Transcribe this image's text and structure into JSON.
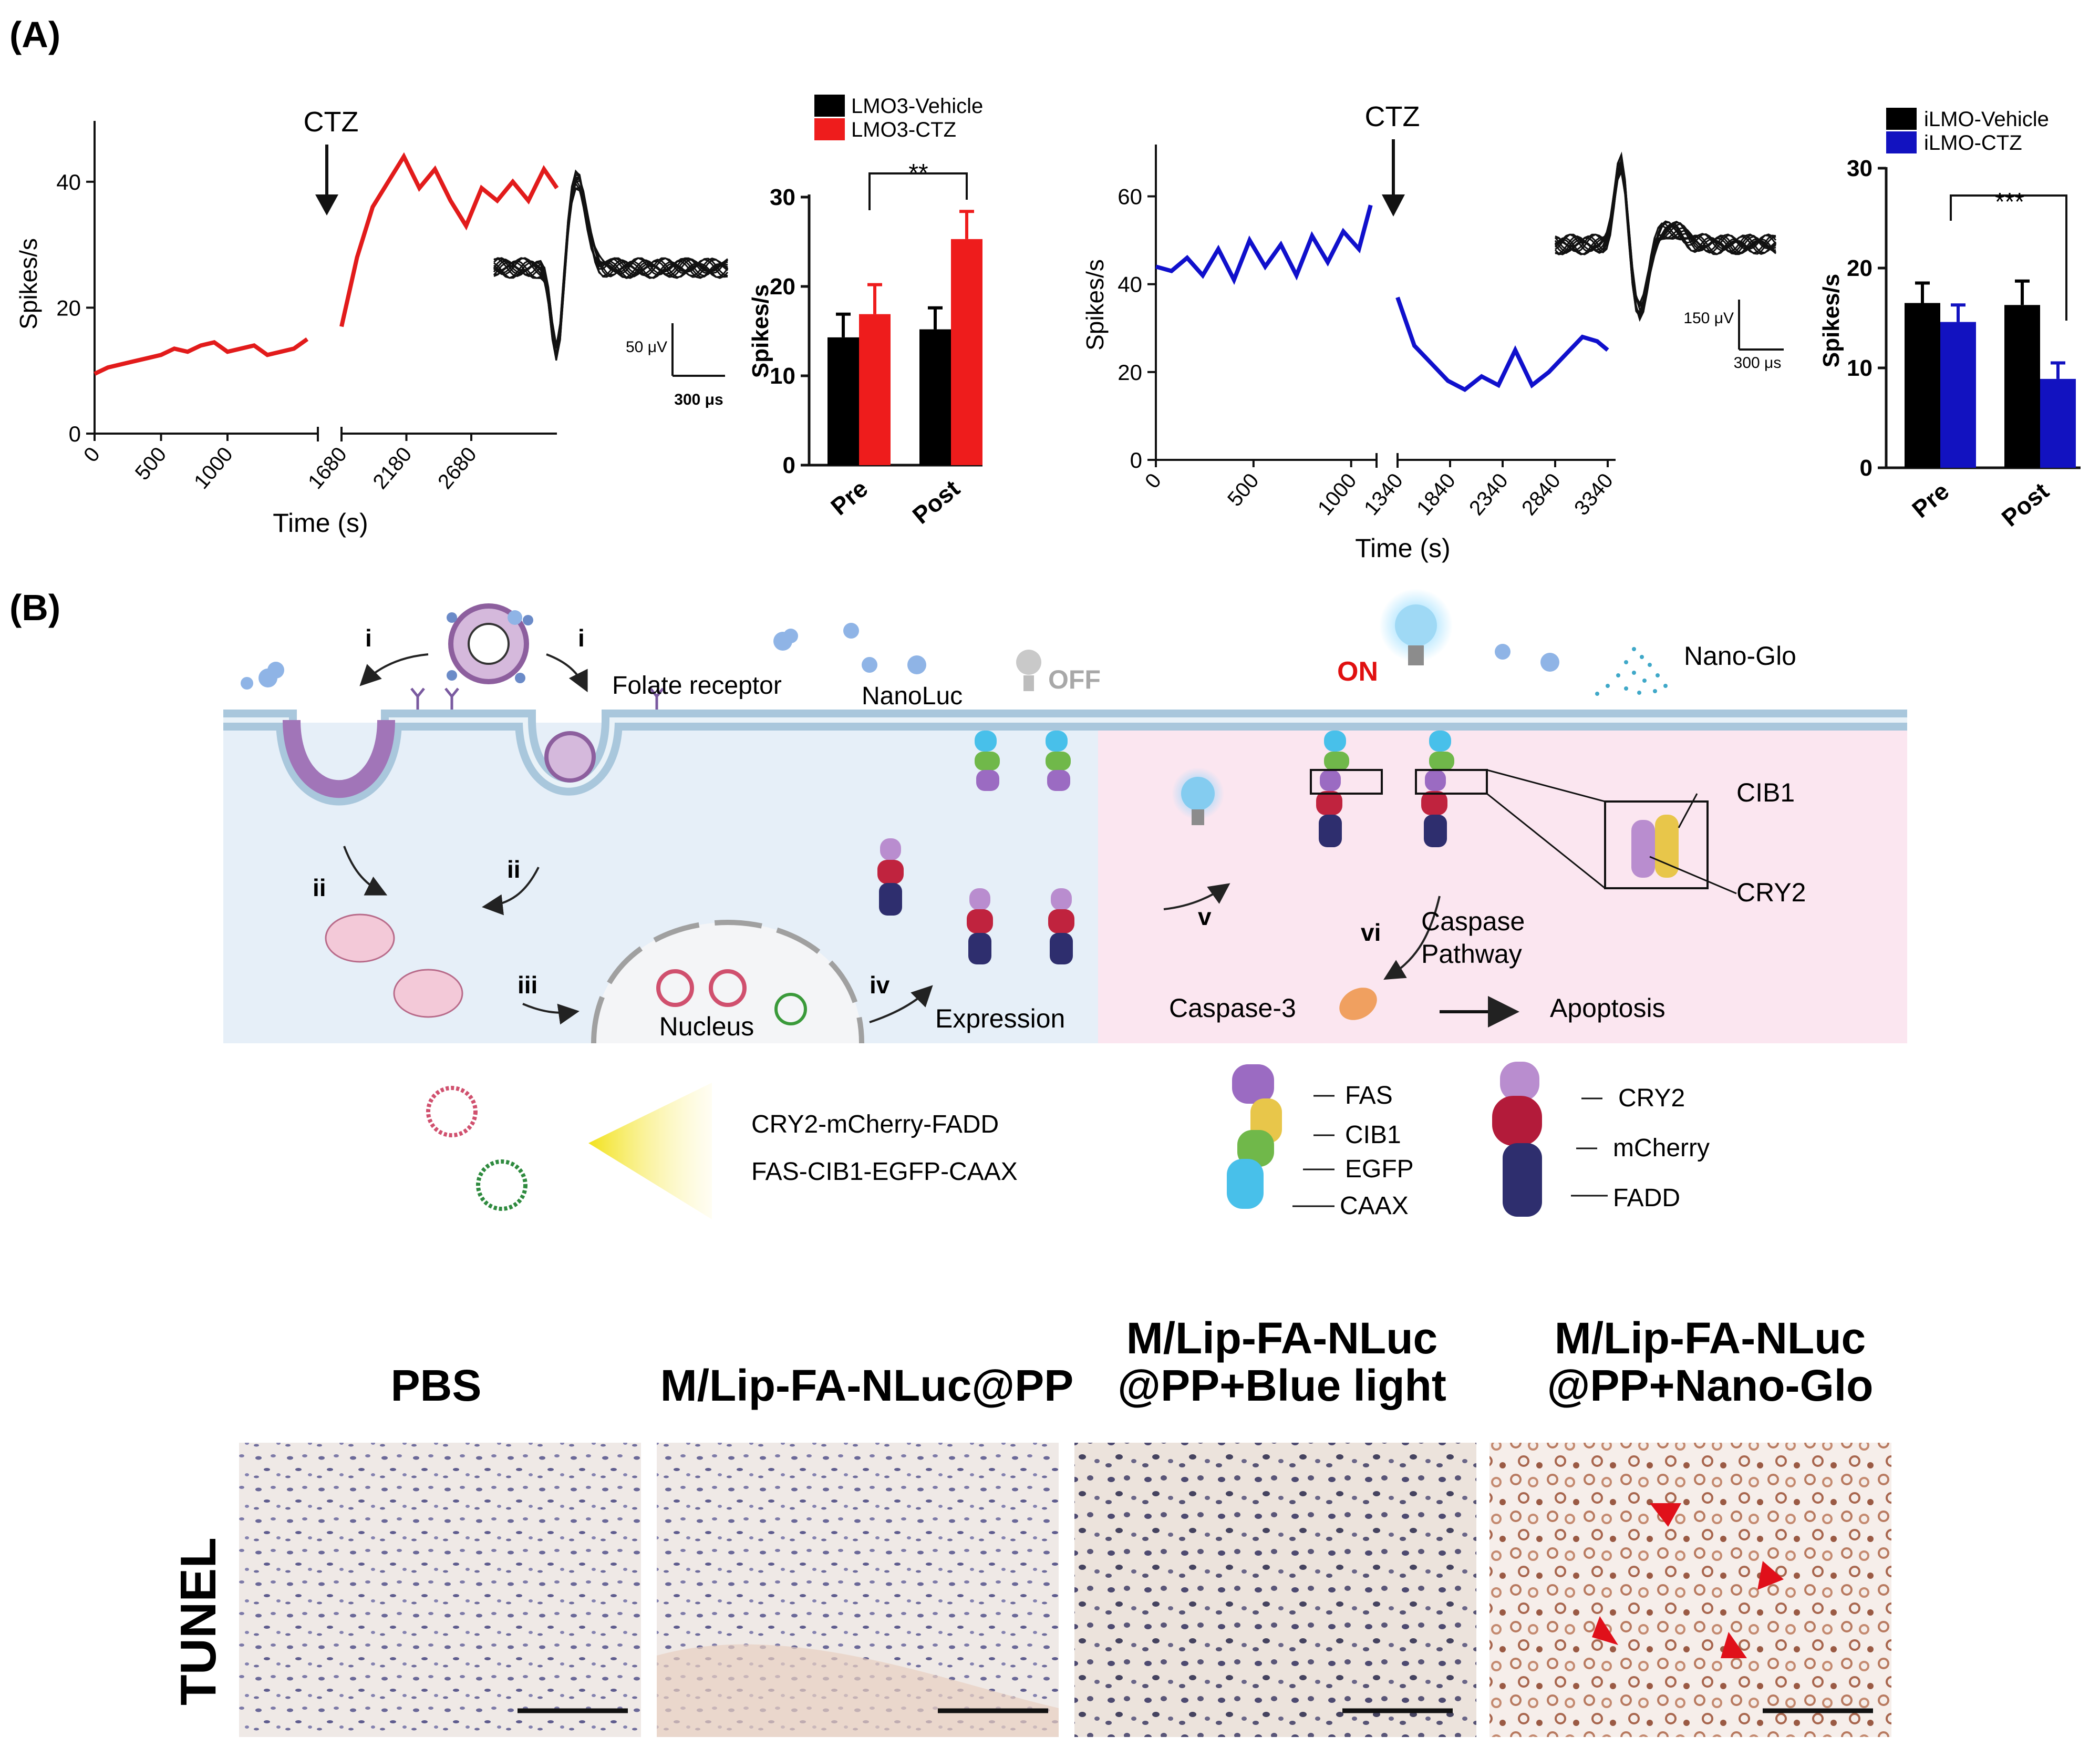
{
  "panel_labels": {
    "a": "(A)",
    "b": "(B)"
  },
  "colors": {
    "lmo3_trace": "#e21b1b",
    "ilmo_trace": "#1010cc",
    "vehicle": "#000000",
    "ctz_red": "#ee1c1c",
    "ctz_blue": "#1212c0",
    "cell_blue": "#e6eff8",
    "cell_pink": "#fbe6f0",
    "membrane": "#a9c7dc",
    "on_red": "#e01010",
    "arrowhead": "#e0101a"
  },
  "chart_data": [
    {
      "id": "lmo3_trace",
      "type": "line",
      "title": "",
      "xlabel": "Time (s)",
      "ylabel": "Spikes/s",
      "annotation": "CTZ",
      "x_ticks": [
        "0",
        "500",
        "1000",
        "1680",
        "2180",
        "2680"
      ],
      "y_ticks": [
        "0",
        "20",
        "40"
      ],
      "ylim": [
        0,
        48
      ],
      "segment_pre": {
        "x": [
          0,
          100,
          200,
          300,
          400,
          500,
          600,
          700,
          800,
          900,
          1000,
          1100,
          1200,
          1300,
          1400,
          1500,
          1600
        ],
        "y": [
          9.5,
          10.5,
          11,
          11.5,
          12,
          12.5,
          13.5,
          13,
          14,
          14.5,
          13,
          13.5,
          14,
          12.5,
          13,
          13.5,
          15
        ]
      },
      "segment_post": {
        "x": [
          1680,
          1800,
          1920,
          2040,
          2160,
          2280,
          2400,
          2520,
          2640,
          2760,
          2880,
          3000,
          3120,
          3240,
          3340
        ],
        "y": [
          17,
          28,
          36,
          40,
          44,
          39,
          42,
          37,
          33,
          39,
          37,
          40,
          37,
          42,
          39
        ]
      },
      "scale_bar": {
        "amplitude": "50 μV",
        "time": "300 μs"
      }
    },
    {
      "id": "lmo3_bar",
      "type": "bar",
      "categories": [
        "Pre",
        "Post"
      ],
      "series": [
        {
          "name": "LMO3-Vehicle",
          "values": [
            14.3,
            15.2
          ],
          "errors": [
            2.6,
            2.4
          ]
        },
        {
          "name": "LMO3-CTZ",
          "values": [
            16.9,
            25.3
          ],
          "errors": [
            3.3,
            3.1
          ]
        }
      ],
      "ylabel": "Spikes/s",
      "y_ticks": [
        "0",
        "10",
        "20",
        "30"
      ],
      "ylim": [
        0,
        30
      ],
      "significance": "**"
    },
    {
      "id": "ilmo_trace",
      "type": "line",
      "xlabel": "Time (s)",
      "ylabel": "Spikes/s",
      "annotation": "CTZ",
      "x_ticks": [
        "0",
        "500",
        "1000",
        "1340",
        "1840",
        "2340",
        "2840",
        "3340"
      ],
      "y_ticks": [
        "0",
        "20",
        "40",
        "60"
      ],
      "ylim": [
        0,
        70
      ],
      "segment_pre": {
        "x": [
          0,
          80,
          160,
          240,
          320,
          400,
          480,
          560,
          640,
          720,
          800,
          880,
          960,
          1040,
          1100
        ],
        "y": [
          44,
          43,
          46,
          42,
          48,
          41,
          50,
          44,
          49,
          42,
          51,
          45,
          52,
          48,
          58
        ]
      },
      "segment_post": {
        "x": [
          1340,
          1500,
          1660,
          1820,
          1980,
          2140,
          2300,
          2460,
          2620,
          2780,
          2940,
          3100,
          3240,
          3340
        ],
        "y": [
          37,
          26,
          22,
          18,
          16,
          19,
          17,
          25,
          17,
          20,
          24,
          28,
          27,
          25
        ]
      },
      "scale_bar": {
        "amplitude": "150 μV",
        "time": "300 μs"
      }
    },
    {
      "id": "ilmo_bar",
      "type": "bar",
      "categories": [
        "Pre",
        "Post"
      ],
      "series": [
        {
          "name": "iLMO-Vehicle",
          "values": [
            16.5,
            16.3
          ],
          "errors": [
            2.0,
            2.4
          ]
        },
        {
          "name": "iLMO-CTZ",
          "values": [
            14.6,
            8.9
          ],
          "errors": [
            1.7,
            1.6
          ]
        }
      ],
      "ylabel": "Spikes/s",
      "y_ticks": [
        "0",
        "10",
        "20",
        "30"
      ],
      "ylim": [
        0,
        30
      ],
      "significance": "***"
    }
  ],
  "schematic": {
    "step_i_left": "i",
    "step_i_right": "i",
    "step_ii_left": "ii",
    "step_ii_right": "ii",
    "step_iii": "iii",
    "step_iv": "iv",
    "step_v": "v",
    "step_vi": "vi",
    "folate_receptor": "Folate receptor",
    "nanoluc": "NanoLuc",
    "off": "OFF",
    "on": "ON",
    "nano_glo": "Nano-Glo",
    "nucleus": "Nucleus",
    "expression": "Expression",
    "cib1": "CIB1",
    "cry2": "CRY2",
    "caspase_line1": "Caspase",
    "caspase_line2": "Pathway",
    "caspase3": "Caspase-3",
    "apoptosis": "Apoptosis",
    "plasmid1": "CRY2-mCherry-FADD",
    "plasmid2": "FAS-CIB1-EGFP-CAAX",
    "legend_left": [
      "FAS",
      "CIB1",
      "EGFP",
      "CAAX"
    ],
    "legend_right": [
      "CRY2",
      "mCherry",
      "FADD"
    ]
  },
  "tunel": {
    "row_label": "TUNEL",
    "col1": "PBS",
    "col2": "M/Lip-FA-NLuc@PP",
    "col3_line1": "M/Lip-FA-NLuc",
    "col3_line2": "@PP+Blue light",
    "col4_line1": "M/Lip-FA-NLuc",
    "col4_line2": "@PP+Nano-Glo"
  }
}
